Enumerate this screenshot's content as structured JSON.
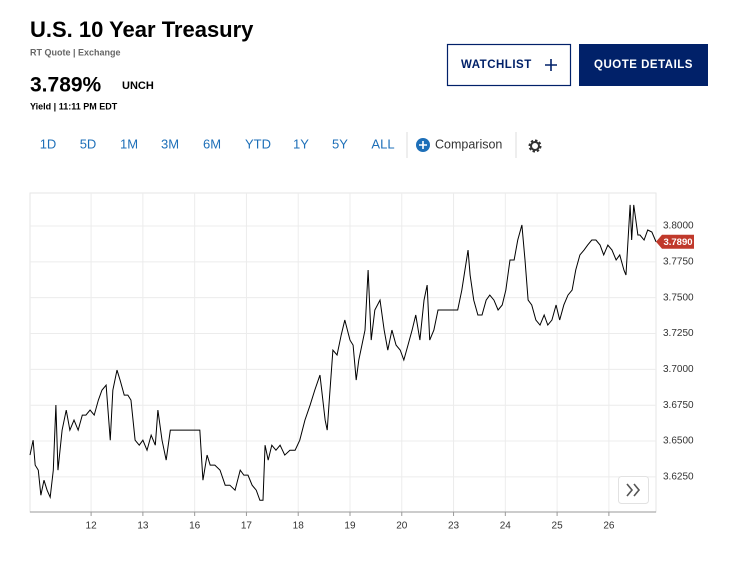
{
  "header": {
    "title": "U.S. 10 Year Treasury",
    "source": "RT Quote | Exchange",
    "price": "3.789%",
    "change": "UNCH",
    "meta": "Yield | 11:11 PM EDT"
  },
  "buttons": {
    "watchlist": "WATCHLIST",
    "quote_details": "QUOTE DETAILS"
  },
  "ranges": [
    "1D",
    "5D",
    "1M",
    "3M",
    "6M",
    "YTD",
    "1Y",
    "5Y",
    "ALL"
  ],
  "comparison": "Comparison",
  "chart_data": {
    "type": "line",
    "x": [
      -0.18,
      -0.12,
      -0.08,
      -0.02,
      0.03,
      0.09,
      0.15,
      0.21,
      0.27,
      0.32,
      0.36,
      0.44,
      0.52,
      0.59,
      0.67,
      0.75,
      0.83,
      0.9,
      0.98,
      1.06,
      1.14,
      1.21,
      1.29,
      1.37,
      1.42,
      1.5,
      1.56,
      1.64,
      1.71,
      1.77,
      1.85,
      1.93,
      2.0,
      2.08,
      2.16,
      2.24,
      2.29,
      2.37,
      2.45,
      2.53,
      2.62,
      2.81,
      3.01,
      3.1,
      3.16,
      3.24,
      3.3,
      3.39,
      3.49,
      3.59,
      3.68,
      3.78,
      3.88,
      3.95,
      4.03,
      4.11,
      4.19,
      4.26,
      4.32,
      4.36,
      4.42,
      4.49,
      4.57,
      4.65,
      4.74,
      4.84,
      4.94,
      5.03,
      5.13,
      5.23,
      5.32,
      5.42,
      5.52,
      5.56,
      5.6,
      5.67,
      5.75,
      5.83,
      5.9,
      6.0,
      6.06,
      6.12,
      6.17,
      6.23,
      6.29,
      6.35,
      6.41,
      6.48,
      6.58,
      6.66,
      6.73,
      6.81,
      6.89,
      6.97,
      7.04,
      7.12,
      7.2,
      7.27,
      7.35,
      7.43,
      7.49,
      7.54,
      7.62,
      7.7,
      7.81,
      7.97,
      8.08,
      8.16,
      8.22,
      8.28,
      8.32,
      8.39,
      8.47,
      8.55,
      8.63,
      8.7,
      8.78,
      8.86,
      8.94,
      9.01,
      9.09,
      9.17,
      9.24,
      9.32,
      9.38,
      9.44,
      9.51,
      9.59,
      9.67,
      9.75,
      9.82,
      9.9,
      9.98,
      10.05,
      10.13,
      10.21,
      10.29,
      10.36,
      10.44,
      10.52,
      10.59,
      10.67,
      10.75,
      10.83,
      10.9,
      10.98,
      11.06,
      11.14,
      11.21,
      11.29,
      11.33,
      11.37,
      11.41,
      11.44,
      11.48,
      11.52,
      11.56,
      11.6,
      11.68,
      11.75,
      11.83,
      11.91
    ],
    "series": [
      {
        "color": "#000000",
        "values": [
          3.6402,
          3.6506,
          3.6332,
          3.6297,
          3.6122,
          3.6227,
          3.6157,
          3.6108,
          3.6297,
          3.6751,
          3.6297,
          3.6576,
          3.6716,
          3.6576,
          3.6646,
          3.6576,
          3.6681,
          3.6681,
          3.6716,
          3.6681,
          3.6785,
          3.6855,
          3.689,
          3.6506,
          3.6855,
          3.6995,
          3.6925,
          3.682,
          3.682,
          3.6785,
          3.6506,
          3.6471,
          3.6506,
          3.6436,
          3.6541,
          3.6471,
          3.6716,
          3.6506,
          3.6367,
          3.6576,
          3.6576,
          3.6576,
          3.6576,
          3.6576,
          3.6227,
          3.6402,
          3.6332,
          3.6332,
          3.6297,
          3.6192,
          3.6192,
          3.6157,
          3.6297,
          3.6262,
          3.6262,
          3.6192,
          3.6157,
          3.6087,
          3.6087,
          3.6471,
          3.6367,
          3.6471,
          3.6436,
          3.6471,
          3.6402,
          3.6436,
          3.6436,
          3.6506,
          3.6646,
          3.6751,
          3.6855,
          3.696,
          3.6646,
          3.6576,
          3.6785,
          3.7134,
          3.71,
          3.7239,
          3.7344,
          3.7204,
          3.7169,
          3.6925,
          3.7065,
          3.7169,
          3.7274,
          3.7693,
          3.7204,
          3.7414,
          3.7483,
          3.7274,
          3.7134,
          3.7274,
          3.7169,
          3.7134,
          3.7065,
          3.7169,
          3.7274,
          3.7379,
          3.7204,
          3.7483,
          3.7588,
          3.7204,
          3.7274,
          3.7414,
          3.7414,
          3.7414,
          3.7414,
          3.7553,
          3.7693,
          3.7832,
          3.7658,
          3.7483,
          3.7379,
          3.7379,
          3.7483,
          3.7518,
          3.7483,
          3.7414,
          3.7449,
          3.7553,
          3.7763,
          3.7763,
          3.7902,
          3.8007,
          3.7763,
          3.7483,
          3.7449,
          3.7344,
          3.7309,
          3.7379,
          3.7309,
          3.7344,
          3.7449,
          3.7344,
          3.7449,
          3.7518,
          3.7553,
          3.7693,
          3.7798,
          3.7832,
          3.7867,
          3.7902,
          3.7902,
          3.7867,
          3.7798,
          3.7867,
          3.7832,
          3.7763,
          3.7798,
          3.7693,
          3.7658,
          3.7902,
          3.8147,
          3.7902,
          3.8147,
          3.8042,
          3.7937,
          3.7937,
          3.7902,
          3.7972,
          3.7958,
          3.789
        ]
      }
    ],
    "current": {
      "value": 3.789,
      "label": "3.7890",
      "color": "#c0392b"
    },
    "xlim": [
      -0.18,
      11.91
    ],
    "xticks": [
      {
        "value": 1,
        "label": "12"
      },
      {
        "value": 2,
        "label": "13"
      },
      {
        "value": 3,
        "label": "16"
      },
      {
        "value": 4,
        "label": "17"
      },
      {
        "value": 5,
        "label": "18"
      },
      {
        "value": 6,
        "label": "19"
      },
      {
        "value": 7,
        "label": "20"
      },
      {
        "value": 8,
        "label": "23"
      },
      {
        "value": 9,
        "label": "24"
      },
      {
        "value": 10,
        "label": "25"
      },
      {
        "value": 11,
        "label": "26"
      }
    ],
    "ylim": [
      3.6005,
      3.823
    ],
    "yticks": [
      {
        "value": 3.625,
        "label": "3.6250"
      },
      {
        "value": 3.65,
        "label": "3.6500"
      },
      {
        "value": 3.675,
        "label": "3.6750"
      },
      {
        "value": 3.7,
        "label": "3.7000"
      },
      {
        "value": 3.725,
        "label": "3.7250"
      },
      {
        "value": 3.75,
        "label": "3.7500"
      },
      {
        "value": 3.775,
        "label": "3.7750"
      },
      {
        "value": 3.8,
        "label": "3.8000"
      }
    ],
    "grid": true
  }
}
